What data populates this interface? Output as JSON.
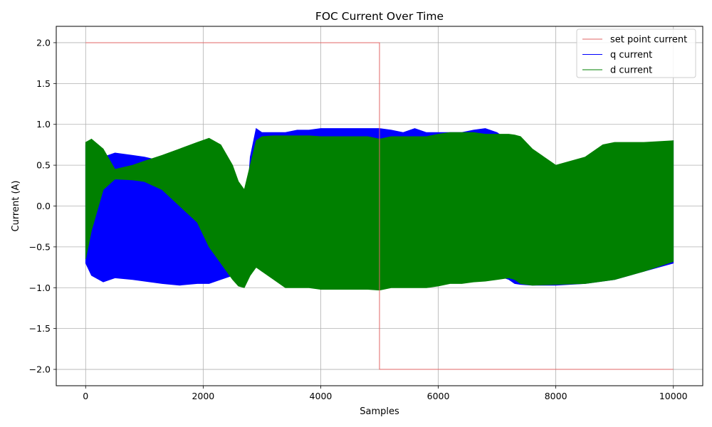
{
  "chart_data": {
    "type": "line",
    "title": "FOC Current Over Time",
    "xlabel": "Samples",
    "ylabel": "Current (A)",
    "xlim": [
      -500,
      10500
    ],
    "ylim": [
      -2.2,
      2.2
    ],
    "xticks": [
      0,
      2000,
      4000,
      6000,
      8000,
      10000
    ],
    "xtick_labels": [
      "0",
      "2000",
      "4000",
      "6000",
      "8000",
      "10000"
    ],
    "yticks": [
      -2.0,
      -1.5,
      -1.0,
      -0.5,
      0.0,
      0.5,
      1.0,
      1.5,
      2.0
    ],
    "ytick_labels": [
      "−2.0",
      "−1.5",
      "−1.0",
      "−0.5",
      "0.0",
      "0.5",
      "1.0",
      "1.5",
      "2.0"
    ],
    "grid": true,
    "legend_position": "top-right",
    "series": [
      {
        "name": "set point current",
        "color": "#e06666",
        "style": "step",
        "x": [
          0,
          5000,
          5000,
          10000
        ],
        "y": [
          2.0,
          2.0,
          -2.0,
          -2.0
        ]
      },
      {
        "name": "q current",
        "color": "#0000ff",
        "style": "band",
        "x": [
          0,
          100,
          300,
          500,
          800,
          1000,
          1300,
          1600,
          1900,
          2100,
          2300,
          2500,
          2600,
          2700,
          2800,
          2900,
          3000,
          3200,
          3400,
          3600,
          3800,
          4000,
          4200,
          4400,
          4600,
          4800,
          5000,
          5200,
          5400,
          5600,
          5800,
          6000,
          6200,
          6400,
          6600,
          6800,
          7000,
          7200,
          7300,
          7400,
          7600,
          8000,
          8500,
          9000,
          9500,
          10000
        ],
        "upper": [
          0.75,
          0.5,
          0.6,
          0.65,
          0.62,
          0.6,
          0.55,
          0.5,
          0.3,
          0.1,
          -0.2,
          -0.5,
          -0.65,
          -0.4,
          0.6,
          0.95,
          0.9,
          0.9,
          0.9,
          0.93,
          0.93,
          0.95,
          0.95,
          0.95,
          0.95,
          0.95,
          0.95,
          0.93,
          0.9,
          0.95,
          0.9,
          0.9,
          0.9,
          0.9,
          0.93,
          0.95,
          0.9,
          0.8,
          0.6,
          0.5,
          0.5,
          0.5,
          0.55,
          0.7,
          0.75,
          0.8
        ],
        "lower": [
          -0.7,
          -0.85,
          -0.93,
          -0.88,
          -0.9,
          -0.92,
          -0.95,
          -0.97,
          -0.95,
          -0.95,
          -0.9,
          -0.85,
          -0.8,
          -0.85,
          -0.75,
          -0.7,
          -0.8,
          -0.85,
          -0.9,
          -0.88,
          -0.9,
          -0.9,
          -0.92,
          -0.92,
          -0.9,
          -0.9,
          -0.9,
          -0.88,
          -0.88,
          -0.9,
          -0.85,
          -0.85,
          -0.88,
          -0.85,
          -0.85,
          -0.87,
          -0.85,
          -0.9,
          -0.95,
          -0.96,
          -0.97,
          -0.97,
          -0.95,
          -0.9,
          -0.8,
          -0.7
        ]
      },
      {
        "name": "d current",
        "color": "#008000",
        "style": "band",
        "x": [
          0,
          100,
          300,
          500,
          800,
          1000,
          1300,
          1600,
          1900,
          2100,
          2300,
          2500,
          2600,
          2700,
          2800,
          2900,
          3000,
          3200,
          3400,
          3600,
          3800,
          4000,
          4200,
          4400,
          4600,
          4800,
          5000,
          5200,
          5400,
          5600,
          5800,
          6000,
          6200,
          6400,
          6600,
          6800,
          7000,
          7200,
          7300,
          7400,
          7600,
          8000,
          8500,
          8800,
          9000,
          9500,
          10000
        ],
        "upper": [
          0.78,
          0.82,
          0.7,
          0.45,
          0.5,
          0.55,
          0.62,
          0.7,
          0.78,
          0.83,
          0.75,
          0.5,
          0.3,
          0.2,
          0.5,
          0.8,
          0.85,
          0.86,
          0.86,
          0.86,
          0.86,
          0.85,
          0.85,
          0.85,
          0.85,
          0.85,
          0.82,
          0.85,
          0.85,
          0.85,
          0.85,
          0.88,
          0.9,
          0.9,
          0.9,
          0.88,
          0.88,
          0.88,
          0.87,
          0.85,
          0.7,
          0.5,
          0.6,
          0.75,
          0.78,
          0.78,
          0.8
        ],
        "lower": [
          -0.65,
          -0.3,
          0.2,
          0.33,
          0.32,
          0.3,
          0.2,
          0.0,
          -0.2,
          -0.5,
          -0.7,
          -0.9,
          -0.98,
          -1.0,
          -0.85,
          -0.75,
          -0.8,
          -0.9,
          -1.0,
          -1.0,
          -1.0,
          -1.02,
          -1.02,
          -1.02,
          -1.02,
          -1.02,
          -1.03,
          -1.0,
          -1.0,
          -1.0,
          -1.0,
          -0.98,
          -0.95,
          -0.95,
          -0.93,
          -0.92,
          -0.9,
          -0.88,
          -0.9,
          -0.95,
          -0.97,
          -0.96,
          -0.95,
          -0.92,
          -0.9,
          -0.8,
          -0.68
        ]
      }
    ]
  }
}
